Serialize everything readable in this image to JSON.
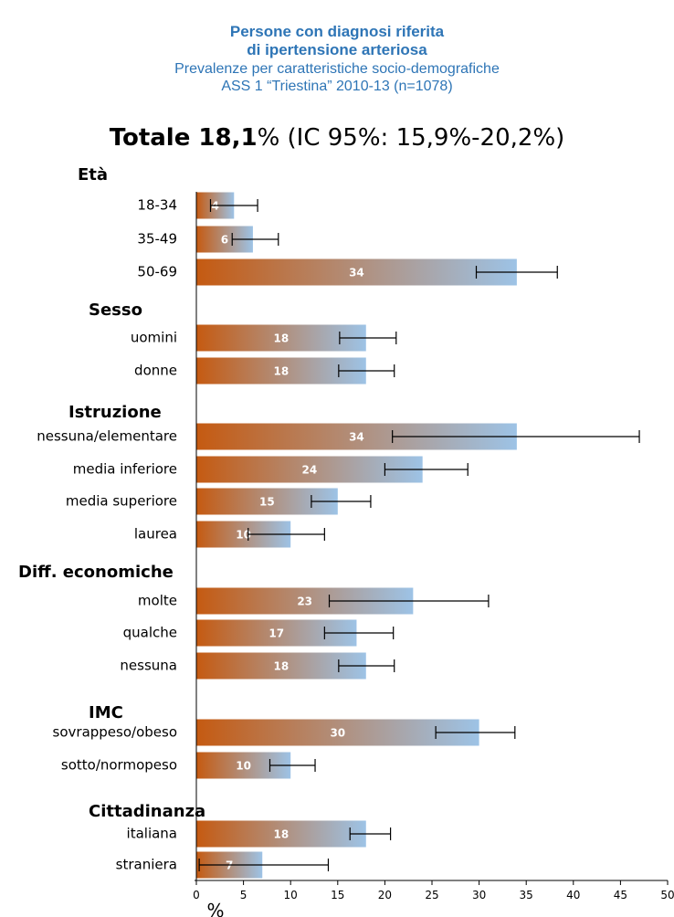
{
  "header": {
    "title_line1": "Persone con diagnosi riferita",
    "title_line2": "di ipertensione arteriosa",
    "subtitle_line1": "Prevalenze per caratteristiche socio-demografiche",
    "subtitle_line2": "ASS 1 “Triestina” 2010-13 (n=1078)",
    "total_bold": "Totale 18,1",
    "total_rest": "% (IC 95%: 15,9%-20,2%)"
  },
  "colors": {
    "bar_start": "#c55a11",
    "bar_end": "#9dc3e6",
    "title": "#2e75b6",
    "label_on_bar": "#ffffff"
  },
  "chart_data": {
    "type": "bar",
    "orientation": "horizontal",
    "xlabel": "%",
    "xlim": [
      0,
      50
    ],
    "xticks": [
      0,
      5,
      10,
      15,
      20,
      25,
      30,
      35,
      40,
      45,
      50
    ],
    "grid": false,
    "groups": [
      {
        "name": "Età",
        "items": [
          {
            "label": "18-34",
            "value": 4,
            "ci": [
              1.5,
              6.5
            ]
          },
          {
            "label": "35-49",
            "value": 6,
            "ci": [
              3.8,
              8.7
            ]
          },
          {
            "label": "50-69",
            "value": 34,
            "ci": [
              29.7,
              38.3
            ]
          }
        ]
      },
      {
        "name": "Sesso",
        "items": [
          {
            "label": "uomini",
            "value": 18,
            "ci": [
              15.2,
              21.2
            ]
          },
          {
            "label": "donne",
            "value": 18,
            "ci": [
              15.1,
              21.0
            ]
          }
        ]
      },
      {
        "name": "Istruzione",
        "items": [
          {
            "label": "nessuna/elementare",
            "value": 34,
            "ci": [
              20.8,
              47.0
            ]
          },
          {
            "label": "media inferiore",
            "value": 24,
            "ci": [
              20.0,
              28.8
            ]
          },
          {
            "label": "media superiore",
            "value": 15,
            "ci": [
              12.2,
              18.5
            ]
          },
          {
            "label": "laurea",
            "value": 10,
            "ci": [
              5.5,
              13.6
            ]
          }
        ]
      },
      {
        "name": "Diff. economiche",
        "items": [
          {
            "label": "molte",
            "value": 23,
            "ci": [
              14.1,
              31.0
            ]
          },
          {
            "label": "qualche",
            "value": 17,
            "ci": [
              13.6,
              20.9
            ]
          },
          {
            "label": "nessuna",
            "value": 18,
            "ci": [
              15.1,
              21.0
            ]
          }
        ]
      },
      {
        "name": "IMC",
        "items": [
          {
            "label": "sovrappeso/obeso",
            "value": 30,
            "ci": [
              25.4,
              33.8
            ]
          },
          {
            "label": "sotto/normopeso",
            "value": 10,
            "ci": [
              7.8,
              12.6
            ]
          }
        ]
      },
      {
        "name": "Cittadinanza",
        "items": [
          {
            "label": "italiana",
            "value": 18,
            "ci": [
              16.3,
              20.6
            ]
          },
          {
            "label": "straniera",
            "value": 7,
            "ci": [
              0.3,
              14.0
            ]
          }
        ]
      }
    ]
  }
}
